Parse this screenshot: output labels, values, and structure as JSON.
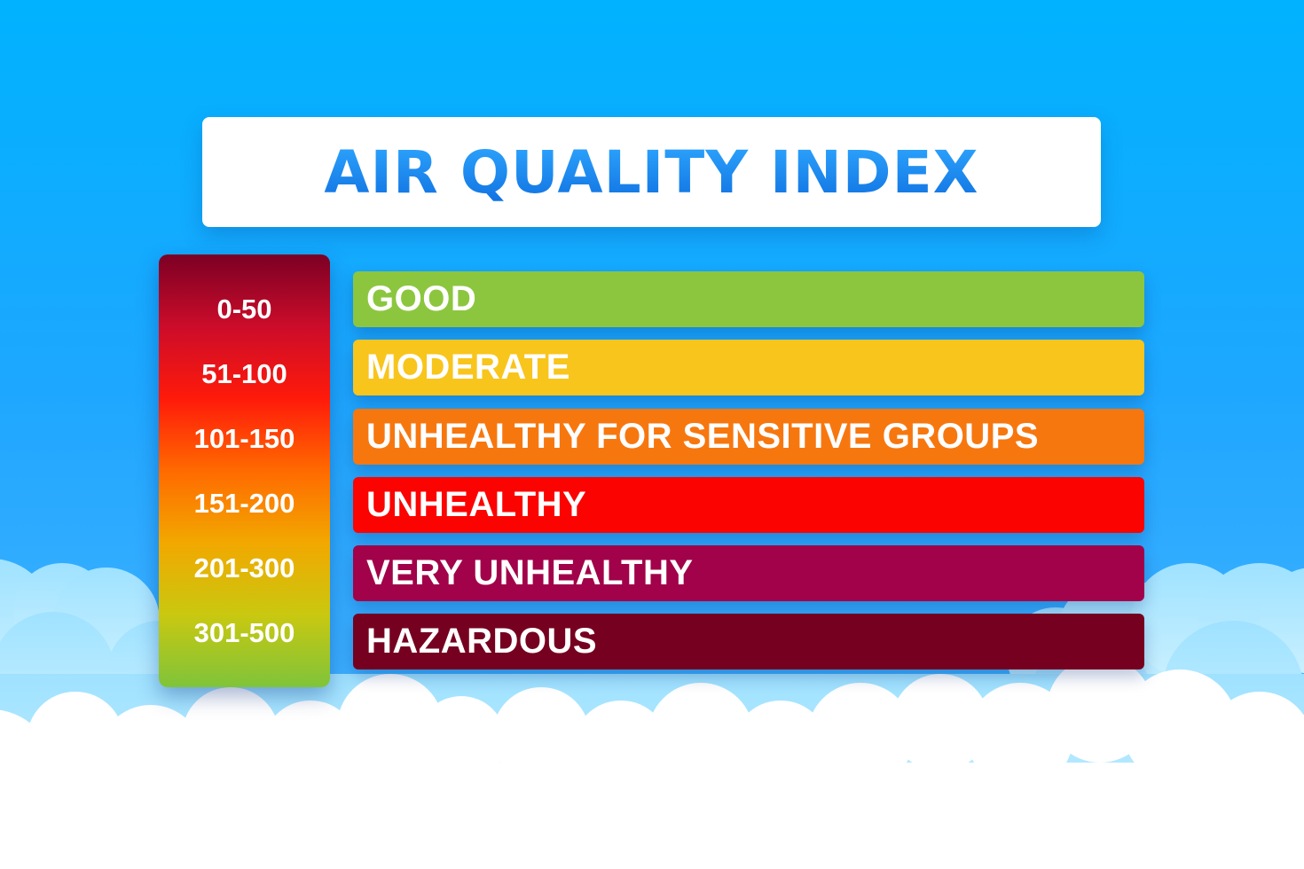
{
  "title": "AIR QUALITY INDEX",
  "scale": {
    "gradient_colors": [
      "#7b0024",
      "#cc0c2a",
      "#ff1a0a",
      "#ff6a00",
      "#f2a800",
      "#c9c810",
      "#7fc43a"
    ],
    "ranges": [
      "0-50",
      "51-100",
      "101-150",
      "151-200",
      "201-300",
      "301-500"
    ]
  },
  "categories": [
    {
      "label": "GOOD",
      "color": "#8cc63f"
    },
    {
      "label": "MODERATE",
      "color": "#f8c51c"
    },
    {
      "label": "UNHEALTHY FOR SENSITIVE GROUPS",
      "color": "#f7770f"
    },
    {
      "label": "UNHEALTHY",
      "color": "#fb0301"
    },
    {
      "label": "VERY UNHEALTHY",
      "color": "#a10249"
    },
    {
      "label": "HAZARDOUS",
      "color": "#760020"
    }
  ],
  "colors": {
    "background": "#1ea7ff",
    "title_text": "#1a8cf0",
    "cloud_light": "#c9f0ff",
    "cloud_white": "#ffffff"
  }
}
